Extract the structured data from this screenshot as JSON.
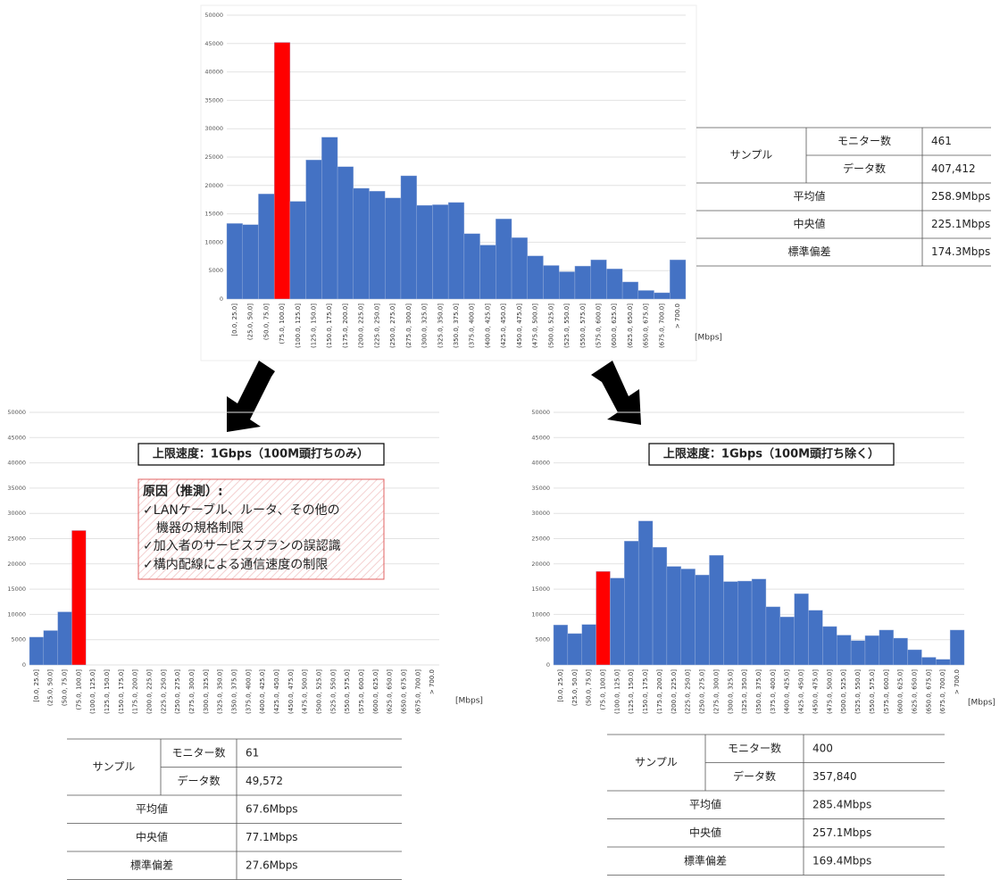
{
  "chart_data": [
    {
      "type": "bar",
      "x_unit": "[Mbps]",
      "categories": [
        "[0.0, 25.0]",
        "(25.0, 50.0]",
        "(50.0, 75.0]",
        "(75.0, 100.0]",
        "(100.0, 125.0]",
        "(125.0, 150.0]",
        "(150.0, 175.0]",
        "(175.0, 200.0]",
        "(200.0, 225.0]",
        "(225.0, 250.0]",
        "(250.0, 275.0]",
        "(275.0, 300.0]",
        "(300.0, 325.0]",
        "(325.0, 350.0]",
        "(350.0, 375.0]",
        "(375.0, 400.0]",
        "(400.0, 425.0]",
        "(425.0, 450.0]",
        "(450.0, 475.0]",
        "(475.0, 500.0]",
        "(500.0, 525.0]",
        "(525.0, 550.0]",
        "(550.0, 575.0]",
        "(575.0, 600.0]",
        "(600.0, 625.0]",
        "(625.0, 650.0]",
        "(650.0, 675.0]",
        "(675.0, 700.0]",
        "> 700.0"
      ],
      "values": [
        13300,
        13100,
        18500,
        45200,
        17200,
        24500,
        28500,
        23300,
        19500,
        19000,
        17800,
        21700,
        16500,
        16600,
        17000,
        11500,
        9500,
        14100,
        10800,
        7600,
        5900,
        4800,
        5800,
        6900,
        5300,
        3000,
        1500,
        1100,
        6900
      ],
      "colors": [
        "#4472c4",
        "#4472c4",
        "#4472c4",
        "#ff0000",
        "#4472c4",
        "#4472c4",
        "#4472c4",
        "#4472c4",
        "#4472c4",
        "#4472c4",
        "#4472c4",
        "#4472c4",
        "#4472c4",
        "#4472c4",
        "#4472c4",
        "#4472c4",
        "#4472c4",
        "#4472c4",
        "#4472c4",
        "#4472c4",
        "#4472c4",
        "#4472c4",
        "#4472c4",
        "#4472c4",
        "#4472c4",
        "#4472c4",
        "#4472c4",
        "#4472c4",
        "#4472c4"
      ],
      "ylim": [
        0,
        50000
      ],
      "yticks": [
        0,
        5000,
        10000,
        15000,
        20000,
        25000,
        30000,
        35000,
        40000,
        45000,
        50000
      ],
      "grid": true
    },
    {
      "type": "bar",
      "x_unit": "[Mbps]",
      "title": "上限速度：1Gbps（100M頭打ちのみ）",
      "note_title": "原因（推測）:",
      "note_lines": [
        "✓LANケーブル、ルータ、その他の",
        "機器の規格制限",
        "✓加入者のサービスプランの誤認識",
        "✓構内配線による通信速度の制限"
      ],
      "categories": [
        "[0.0, 25.0]",
        "(25.0, 50.0]",
        "(50.0, 75.0]",
        "(75.0, 100.0]",
        "(100.0, 125.0]",
        "(125.0, 150.0]",
        "(150.0, 175.0]",
        "(175.0, 200.0]",
        "(200.0, 225.0]",
        "(225.0, 250.0]",
        "(250.0, 275.0]",
        "(275.0, 300.0]",
        "(300.0, 325.0]",
        "(325.0, 350.0]",
        "(350.0, 375.0]",
        "(375.0, 400.0]",
        "(400.0, 425.0]",
        "(425.0, 450.0]",
        "(450.0, 475.0]",
        "(475.0, 500.0]",
        "(500.0, 525.0]",
        "(525.0, 550.0]",
        "(550.0, 575.0]",
        "(575.0, 600.0]",
        "(600.0, 625.0]",
        "(625.0, 650.0]",
        "(650.0, 675.0]",
        "(675.0, 700.0]",
        "> 700.0"
      ],
      "values": [
        5500,
        6800,
        10500,
        26600,
        0,
        0,
        0,
        0,
        0,
        0,
        0,
        0,
        0,
        0,
        0,
        0,
        0,
        0,
        0,
        0,
        0,
        0,
        0,
        0,
        0,
        0,
        0,
        0,
        0
      ],
      "colors": [
        "#4472c4",
        "#4472c4",
        "#4472c4",
        "#ff0000",
        "#4472c4",
        "#4472c4",
        "#4472c4",
        "#4472c4",
        "#4472c4",
        "#4472c4",
        "#4472c4",
        "#4472c4",
        "#4472c4",
        "#4472c4",
        "#4472c4",
        "#4472c4",
        "#4472c4",
        "#4472c4",
        "#4472c4",
        "#4472c4",
        "#4472c4",
        "#4472c4",
        "#4472c4",
        "#4472c4",
        "#4472c4",
        "#4472c4",
        "#4472c4",
        "#4472c4",
        "#4472c4"
      ],
      "ylim": [
        0,
        50000
      ],
      "yticks": [
        0,
        5000,
        10000,
        15000,
        20000,
        25000,
        30000,
        35000,
        40000,
        45000,
        50000
      ],
      "grid": true
    },
    {
      "type": "bar",
      "x_unit": "[Mbps]",
      "title": "上限速度：1Gbps（100M頭打ち除く）",
      "categories": [
        "[0.0, 25.0]",
        "(25.0, 50.0]",
        "(50.0, 75.0]",
        "(75.0, 100.0]",
        "(100.0, 125.0]",
        "(125.0, 150.0]",
        "(150.0, 175.0]",
        "(175.0, 200.0]",
        "(200.0, 225.0]",
        "(225.0, 250.0]",
        "(250.0, 275.0]",
        "(275.0, 300.0]",
        "(300.0, 325.0]",
        "(325.0, 350.0]",
        "(350.0, 375.0]",
        "(375.0, 400.0]",
        "(400.0, 425.0]",
        "(425.0, 450.0]",
        "(450.0, 475.0]",
        "(475.0, 500.0]",
        "(500.0, 525.0]",
        "(525.0, 550.0]",
        "(550.0, 575.0]",
        "(575.0, 600.0]",
        "(600.0, 625.0]",
        "(625.0, 650.0]",
        "(650.0, 675.0]",
        "(675.0, 700.0]",
        "> 700.0"
      ],
      "values": [
        7900,
        6200,
        8000,
        18500,
        17200,
        24500,
        28500,
        23300,
        19500,
        19000,
        17800,
        21700,
        16500,
        16600,
        17000,
        11500,
        9500,
        14100,
        10800,
        7600,
        5900,
        4800,
        5800,
        6900,
        5300,
        3000,
        1500,
        1100,
        6900
      ],
      "colors": [
        "#4472c4",
        "#4472c4",
        "#4472c4",
        "#ff0000",
        "#4472c4",
        "#4472c4",
        "#4472c4",
        "#4472c4",
        "#4472c4",
        "#4472c4",
        "#4472c4",
        "#4472c4",
        "#4472c4",
        "#4472c4",
        "#4472c4",
        "#4472c4",
        "#4472c4",
        "#4472c4",
        "#4472c4",
        "#4472c4",
        "#4472c4",
        "#4472c4",
        "#4472c4",
        "#4472c4",
        "#4472c4",
        "#4472c4",
        "#4472c4",
        "#4472c4",
        "#4472c4"
      ],
      "ylim": [
        0,
        50000
      ],
      "yticks": [
        0,
        5000,
        10000,
        15000,
        20000,
        25000,
        30000,
        35000,
        40000,
        45000,
        50000
      ],
      "grid": true
    }
  ],
  "tables": [
    {
      "sample_label": "サンプル",
      "sample_rows": [
        [
          "モニター数",
          "461"
        ],
        [
          "データ数",
          "407,412"
        ]
      ],
      "stat_rows": [
        [
          "平均値",
          "258.9Mbps"
        ],
        [
          "中央値",
          "225.1Mbps"
        ],
        [
          "標準偏差",
          "174.3Mbps"
        ]
      ]
    },
    {
      "sample_label": "サンプル",
      "sample_rows": [
        [
          "モニター数",
          "61"
        ],
        [
          "データ数",
          "49,572"
        ]
      ],
      "stat_rows": [
        [
          "平均値",
          "67.6Mbps"
        ],
        [
          "中央値",
          "77.1Mbps"
        ],
        [
          "標準偏差",
          "27.6Mbps"
        ]
      ]
    },
    {
      "sample_label": "サンプル",
      "sample_rows": [
        [
          "モニター数",
          "400"
        ],
        [
          "データ数",
          "357,840"
        ]
      ],
      "stat_rows": [
        [
          "平均値",
          "285.4Mbps"
        ],
        [
          "中央値",
          "257.1Mbps"
        ],
        [
          "標準偏差",
          "169.4Mbps"
        ]
      ]
    }
  ]
}
